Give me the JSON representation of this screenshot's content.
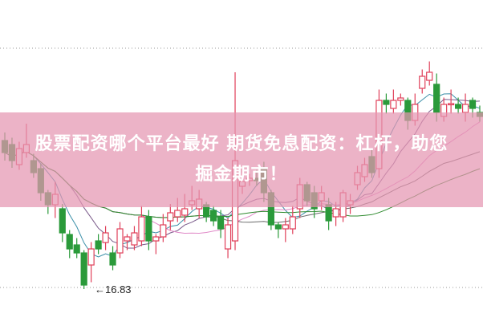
{
  "banner": {
    "line1": "股票配资哪个平台最好 期货免息配资：杠杆，助您",
    "line2": "掘金期市！"
  },
  "chart_data": {
    "type": "candlestick",
    "ylim": [
      16.01,
      24.03
    ],
    "grid": "dotted horizontal",
    "low_label": "←16.83",
    "colors": {
      "up": "#e0405a",
      "down": "#2a9a3a",
      "ma": [
        "#3a8fa8",
        "#7a5a8a",
        "#e08ac8",
        "#6a6a6a",
        "#2e8a2e"
      ]
    },
    "candles": [
      [
        20.53,
        20.73,
        20.03,
        20.23
      ],
      [
        20.43,
        20.6,
        19.85,
        20.03
      ],
      [
        19.93,
        20.5,
        19.8,
        20.33
      ],
      [
        20.23,
        20.95,
        20.1,
        20.43
      ],
      [
        20.03,
        20.2,
        19.6,
        19.73
      ],
      [
        19.83,
        19.95,
        19.03,
        19.23
      ],
      [
        19.23,
        19.3,
        18.7,
        18.93
      ],
      [
        18.93,
        19.5,
        18.6,
        19.19
      ],
      [
        18.83,
        18.95,
        18.0,
        18.23
      ],
      [
        18.19,
        18.3,
        17.6,
        17.83
      ],
      [
        17.93,
        18.1,
        17.6,
        17.73
      ],
      [
        17.73,
        17.8,
        16.83,
        16.93
      ],
      [
        17.43,
        18.0,
        17.0,
        17.83
      ],
      [
        18.03,
        18.2,
        17.7,
        17.83
      ],
      [
        17.99,
        18.4,
        17.8,
        18.23
      ],
      [
        17.73,
        17.9,
        17.3,
        17.43
      ],
      [
        17.73,
        18.5,
        17.6,
        18.33
      ],
      [
        18.03,
        18.2,
        17.8,
        18.13
      ],
      [
        17.93,
        18.4,
        17.8,
        18.23
      ],
      [
        18.03,
        18.9,
        17.9,
        18.63
      ],
      [
        18.63,
        18.8,
        17.8,
        18.03
      ],
      [
        18.03,
        18.2,
        17.7,
        18.13
      ],
      [
        18.13,
        18.7,
        18.0,
        18.43
      ],
      [
        18.53,
        18.95,
        18.3,
        18.73
      ],
      [
        18.63,
        19.1,
        18.5,
        18.79
      ],
      [
        18.67,
        19.2,
        18.5,
        18.83
      ],
      [
        18.93,
        19.4,
        18.8,
        19.03
      ],
      [
        18.83,
        19.3,
        18.6,
        19.07
      ],
      [
        18.93,
        19.0,
        18.5,
        18.63
      ],
      [
        18.79,
        18.9,
        18.4,
        18.53
      ],
      [
        18.63,
        18.8,
        18.1,
        18.33
      ],
      [
        17.83,
        18.6,
        17.6,
        18.43
      ],
      [
        18.03,
        22.23,
        17.8,
        20.03
      ],
      [
        19.39,
        19.9,
        19.2,
        19.51
      ],
      [
        19.53,
        19.7,
        19.4,
        19.59
      ],
      [
        19.59,
        19.8,
        19.4,
        19.53
      ],
      [
        19.83,
        20.0,
        19.0,
        19.23
      ],
      [
        19.23,
        19.3,
        18.3,
        18.43
      ],
      [
        18.43,
        18.5,
        18.1,
        18.33
      ],
      [
        18.33,
        18.6,
        18.0,
        18.43
      ],
      [
        18.33,
        18.9,
        18.2,
        18.63
      ],
      [
        18.83,
        19.6,
        18.6,
        19.43
      ],
      [
        19.43,
        19.5,
        18.9,
        19.03
      ],
      [
        19.23,
        19.4,
        18.6,
        18.83
      ],
      [
        19.03,
        19.4,
        18.8,
        19.23
      ],
      [
        18.93,
        19.1,
        18.3,
        18.53
      ],
      [
        18.63,
        19.0,
        18.4,
        18.83
      ],
      [
        18.63,
        19.3,
        18.5,
        19.23
      ],
      [
        18.93,
        19.2,
        18.7,
        19.03
      ],
      [
        19.43,
        19.9,
        19.3,
        19.73
      ],
      [
        19.63,
        20.1,
        19.5,
        19.93
      ],
      [
        20.13,
        20.3,
        19.6,
        19.73
      ],
      [
        19.83,
        21.8,
        19.6,
        21.53
      ],
      [
        21.53,
        21.7,
        21.2,
        21.43
      ],
      [
        21.33,
        21.8,
        21.2,
        21.53
      ],
      [
        21.53,
        21.7,
        21.4,
        21.59
      ],
      [
        21.53,
        21.6,
        20.8,
        21.03
      ],
      [
        21.03,
        21.7,
        20.9,
        21.43
      ],
      [
        21.83,
        22.3,
        21.7,
        22.13
      ],
      [
        22.03,
        22.5,
        21.9,
        22.23
      ],
      [
        21.93,
        22.2,
        21.0,
        21.23
      ],
      [
        21.13,
        21.6,
        21.0,
        21.43
      ],
      [
        21.43,
        21.8,
        21.2,
        21.45
      ],
      [
        21.43,
        21.6,
        21.2,
        21.33
      ],
      [
        21.23,
        21.7,
        21.0,
        21.43
      ],
      [
        21.53,
        21.6,
        21.1,
        21.33
      ],
      [
        21.23,
        21.4,
        21.0,
        21.13
      ]
    ]
  }
}
